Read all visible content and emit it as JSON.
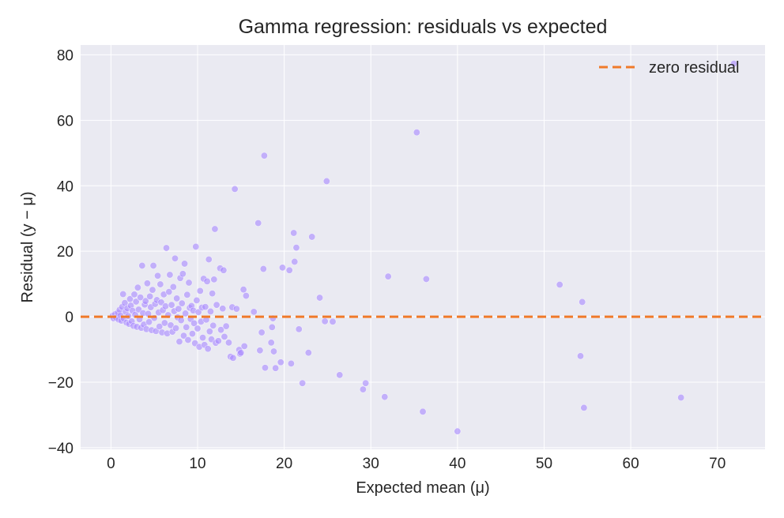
{
  "chart_data": {
    "type": "scatter",
    "title": "Gamma regression: residuals vs expected",
    "xlabel": "Expected mean (μ)",
    "ylabel": "Residual (y − μ)",
    "xlim": [
      -3.5,
      75.5
    ],
    "ylim": [
      -40.5,
      83
    ],
    "xticks": [
      0,
      10,
      20,
      30,
      40,
      50,
      60,
      70
    ],
    "yticks": [
      -40,
      -20,
      0,
      20,
      40,
      60,
      80
    ],
    "xtick_labels": [
      "0",
      "10",
      "20",
      "30",
      "40",
      "50",
      "60",
      "70"
    ],
    "ytick_labels": [
      "−40",
      "−20",
      "0",
      "20",
      "40",
      "60",
      "80"
    ],
    "grid": true,
    "legend": {
      "placement": "top-right",
      "entries": [
        "zero residual"
      ]
    },
    "reference_line": {
      "name": "zero residual",
      "y": 0,
      "style": "dashed",
      "color": "#f07a2a"
    },
    "point_color": "#a98bff",
    "plot_background": "#eaeaf2",
    "series": [
      {
        "name": "",
        "points": [
          [
            0.2,
            0.3
          ],
          [
            0.3,
            -0.5
          ],
          [
            0.5,
            0.8
          ],
          [
            0.6,
            -0.3
          ],
          [
            0.8,
            1.2
          ],
          [
            0.9,
            -0.9
          ],
          [
            1.0,
            2.1
          ],
          [
            1.1,
            0.4
          ],
          [
            1.2,
            -1.2
          ],
          [
            1.3,
            3.0
          ],
          [
            1.4,
            6.9
          ],
          [
            1.5,
            -0.6
          ],
          [
            1.6,
            4.2
          ],
          [
            1.7,
            1.5
          ],
          [
            1.8,
            -1.8
          ],
          [
            1.9,
            2.6
          ],
          [
            2.0,
            0.2
          ],
          [
            2.1,
            -2.2
          ],
          [
            2.2,
            5.4
          ],
          [
            2.3,
            3.4
          ],
          [
            2.4,
            -1.4
          ],
          [
            2.5,
            1.8
          ],
          [
            2.6,
            -2.8
          ],
          [
            2.7,
            6.8
          ],
          [
            2.8,
            0.6
          ],
          [
            2.9,
            4.6
          ],
          [
            3.0,
            -3.1
          ],
          [
            3.1,
            8.9
          ],
          [
            3.2,
            2.2
          ],
          [
            3.3,
            -0.8
          ],
          [
            3.4,
            5.9
          ],
          [
            3.5,
            -3.4
          ],
          [
            3.6,
            15.6
          ],
          [
            3.7,
            1.1
          ],
          [
            3.8,
            -2.4
          ],
          [
            3.9,
            3.7
          ],
          [
            4.0,
            4.8
          ],
          [
            4.1,
            -3.8
          ],
          [
            4.2,
            10.2
          ],
          [
            4.3,
            0.9
          ],
          [
            4.4,
            -1.6
          ],
          [
            4.5,
            6.2
          ],
          [
            4.6,
            2.9
          ],
          [
            4.7,
            -4.1
          ],
          [
            4.8,
            8.2
          ],
          [
            4.9,
            15.6
          ],
          [
            5.0,
            -0.4
          ],
          [
            5.1,
            3.9
          ],
          [
            5.2,
            -4.4
          ],
          [
            5.3,
            5.1
          ],
          [
            5.4,
            12.5
          ],
          [
            5.5,
            1.3
          ],
          [
            5.6,
            -3.0
          ],
          [
            5.7,
            9.9
          ],
          [
            5.8,
            4.4
          ],
          [
            5.9,
            -4.8
          ],
          [
            6.0,
            2.0
          ],
          [
            6.1,
            6.8
          ],
          [
            6.2,
            -1.9
          ],
          [
            6.3,
            3.2
          ],
          [
            6.4,
            21.0
          ],
          [
            6.5,
            -5.1
          ],
          [
            6.6,
            0.5
          ],
          [
            6.7,
            7.6
          ],
          [
            6.8,
            12.8
          ],
          [
            6.9,
            -2.6
          ],
          [
            7.0,
            3.6
          ],
          [
            7.1,
            -4.6
          ],
          [
            7.2,
            9.1
          ],
          [
            7.3,
            1.7
          ],
          [
            7.4,
            17.8
          ],
          [
            7.5,
            -3.5
          ],
          [
            7.6,
            5.6
          ],
          [
            7.7,
            -0.2
          ],
          [
            7.8,
            2.4
          ],
          [
            7.9,
            -7.6
          ],
          [
            8.0,
            11.8
          ],
          [
            8.1,
            -1.1
          ],
          [
            8.2,
            4.1
          ],
          [
            8.3,
            13.1
          ],
          [
            8.4,
            -5.8
          ],
          [
            8.5,
            16.2
          ],
          [
            8.6,
            1.0
          ],
          [
            8.7,
            -3.2
          ],
          [
            8.8,
            6.7
          ],
          [
            8.9,
            -7.1
          ],
          [
            9.0,
            10.4
          ],
          [
            9.1,
            2.7
          ],
          [
            9.2,
            -0.7
          ],
          [
            9.3,
            3.3
          ],
          [
            9.4,
            -5.2
          ],
          [
            9.5,
            1.9
          ],
          [
            9.6,
            -2.0
          ],
          [
            9.7,
            -8.1
          ],
          [
            9.8,
            21.4
          ],
          [
            9.9,
            5.0
          ],
          [
            10.0,
            -3.6
          ],
          [
            10.1,
            1.4
          ],
          [
            10.2,
            -9.2
          ],
          [
            10.3,
            7.9
          ],
          [
            10.4,
            -1.5
          ],
          [
            10.5,
            2.8
          ],
          [
            10.6,
            -6.4
          ],
          [
            10.7,
            11.6
          ],
          [
            10.8,
            -8.6
          ],
          [
            10.9,
            3.0
          ],
          [
            11.0,
            -0.9
          ],
          [
            11.1,
            10.8
          ],
          [
            11.2,
            -9.8
          ],
          [
            11.3,
            17.5
          ],
          [
            11.4,
            -4.5
          ],
          [
            11.5,
            1.6
          ],
          [
            11.6,
            -6.9
          ],
          [
            11.7,
            7.1
          ],
          [
            11.8,
            -2.7
          ],
          [
            11.9,
            11.4
          ],
          [
            12.0,
            26.8
          ],
          [
            12.1,
            -8.0
          ],
          [
            12.2,
            3.6
          ],
          [
            12.4,
            -7.4
          ],
          [
            12.6,
            14.8
          ],
          [
            12.7,
            -4.0
          ],
          [
            12.9,
            2.5
          ],
          [
            13.0,
            14.2
          ],
          [
            13.1,
            -6.1
          ],
          [
            13.3,
            -2.9
          ],
          [
            13.6,
            -7.9
          ],
          [
            13.8,
            -12.2
          ],
          [
            14.0,
            2.9
          ],
          [
            14.1,
            -12.6
          ],
          [
            14.3,
            39.0
          ],
          [
            14.5,
            2.4
          ],
          [
            14.8,
            -10.1
          ],
          [
            14.9,
            -11.3
          ],
          [
            15.0,
            -11.0
          ],
          [
            15.3,
            8.3
          ],
          [
            15.4,
            -9.0
          ],
          [
            15.6,
            6.4
          ],
          [
            16.5,
            1.5
          ],
          [
            17.0,
            28.6
          ],
          [
            17.2,
            -10.3
          ],
          [
            17.4,
            -4.8
          ],
          [
            17.6,
            14.6
          ],
          [
            17.7,
            49.2
          ],
          [
            17.8,
            -15.6
          ],
          [
            18.5,
            -7.9
          ],
          [
            18.6,
            -3.2
          ],
          [
            18.7,
            -0.5
          ],
          [
            18.8,
            -10.6
          ],
          [
            19.0,
            -15.7
          ],
          [
            19.6,
            -13.9
          ],
          [
            19.8,
            15.0
          ],
          [
            20.6,
            14.2
          ],
          [
            20.8,
            -14.3
          ],
          [
            21.1,
            25.6
          ],
          [
            21.2,
            16.8
          ],
          [
            21.4,
            21.1
          ],
          [
            21.7,
            -3.8
          ],
          [
            22.1,
            -20.3
          ],
          [
            22.8,
            -11.0
          ],
          [
            23.2,
            24.4
          ],
          [
            24.1,
            5.8
          ],
          [
            24.7,
            -1.4
          ],
          [
            24.9,
            41.4
          ],
          [
            25.6,
            -1.5
          ],
          [
            26.4,
            -17.8
          ],
          [
            29.1,
            -22.2
          ],
          [
            29.4,
            -20.3
          ],
          [
            31.6,
            -24.5
          ],
          [
            32.0,
            12.3
          ],
          [
            35.3,
            56.3
          ],
          [
            36.0,
            -29.0
          ],
          [
            36.4,
            11.5
          ],
          [
            40.0,
            -35.0
          ],
          [
            51.8,
            9.8
          ],
          [
            54.2,
            -12.0
          ],
          [
            54.4,
            4.5
          ],
          [
            54.6,
            -27.8
          ],
          [
            65.8,
            -24.7
          ],
          [
            71.9,
            77.3
          ]
        ]
      }
    ]
  }
}
